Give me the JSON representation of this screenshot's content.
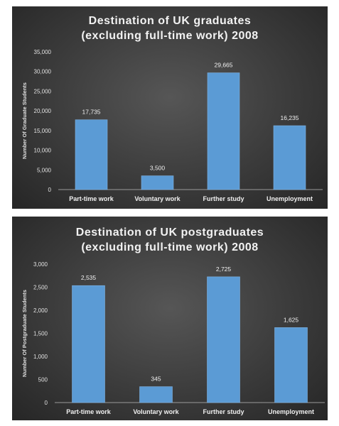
{
  "chart_data": [
    {
      "type": "bar",
      "title": "Destination  of  UK  graduates",
      "subtitle": "(excluding  full-time  work)  2008",
      "xlabel": "",
      "ylabel": "Number Of Graduate Students",
      "categories": [
        "Part-time work",
        "Voluntary work",
        "Further study",
        "Unemployment"
      ],
      "values": [
        17735,
        3500,
        29665,
        16235
      ],
      "value_labels": [
        "17,735",
        "3,500",
        "29,665",
        "16,235"
      ],
      "ylim": [
        0,
        35000
      ],
      "yticks": [
        0,
        5000,
        10000,
        15000,
        20000,
        25000,
        30000,
        35000
      ],
      "ytick_labels": [
        "0",
        "5,000",
        "10,000",
        "15,000",
        "20,000",
        "25,000",
        "30,000",
        "35,000"
      ],
      "grid": false,
      "legend": "none",
      "bar_color": "#5b9bd5"
    },
    {
      "type": "bar",
      "title": "Destination  of  UK  postgraduates",
      "subtitle": "(excluding  full-time  work)  2008",
      "xlabel": "",
      "ylabel": "Number Of Postgraduate  Students",
      "categories": [
        "Part-time work",
        "Voluntary work",
        "Further study",
        "Unemployment"
      ],
      "values": [
        2535,
        345,
        2725,
        1625
      ],
      "value_labels": [
        "2,535",
        "345",
        "2,725",
        "1,625"
      ],
      "ylim": [
        0,
        3000
      ],
      "yticks": [
        0,
        500,
        1000,
        1500,
        2000,
        2500,
        3000
      ],
      "ytick_labels": [
        "0",
        "500",
        "1,000",
        "1,500",
        "2,000",
        "2,500",
        "3,000"
      ],
      "grid": false,
      "legend": "none",
      "bar_color": "#5b9bd5"
    }
  ]
}
